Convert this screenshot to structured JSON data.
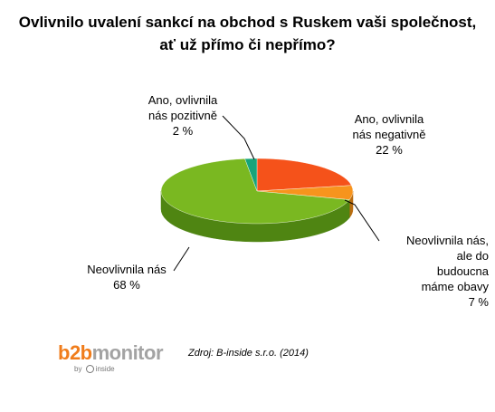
{
  "title_lines": [
    "Ovlivnilo uvalení sankcí na obchod s Ruskem vaši společnost,",
    "ať už přímo či nepřímo?"
  ],
  "chart_data": {
    "type": "pie",
    "style": "3d",
    "title": "Ovlivnilo uvalení sankcí na obchod s Ruskem vaši společnost, ať už přímo či nepřímo?",
    "slices": [
      {
        "label_lines": [
          "Ano, ovlivnila",
          "nás negativně",
          "22 %"
        ],
        "value": 22,
        "color": "#f5521a",
        "side": "#b53a10"
      },
      {
        "label_lines": [
          "Neovlivnila nás,",
          "ale do",
          "budoucna",
          "máme obavy",
          "7 %"
        ],
        "value": 7,
        "color": "#f7941d",
        "side": "#b96c10"
      },
      {
        "label_lines": [
          "Neovlivnila nás",
          "68 %"
        ],
        "value": 68,
        "color": "#7ab821",
        "side": "#4f8512"
      },
      {
        "label_lines": [
          "Ano, ovlivnila",
          "nás pozitivně",
          "2 %"
        ],
        "value": 2,
        "color": "#16a47a",
        "side": "#0d6e51"
      }
    ]
  },
  "logo": {
    "part1": "b2b",
    "part2": "monitor",
    "byline_prefix": "by",
    "byline_brand": "inside"
  },
  "source": "Zdroj: B-inside s.r.o. (2014)"
}
